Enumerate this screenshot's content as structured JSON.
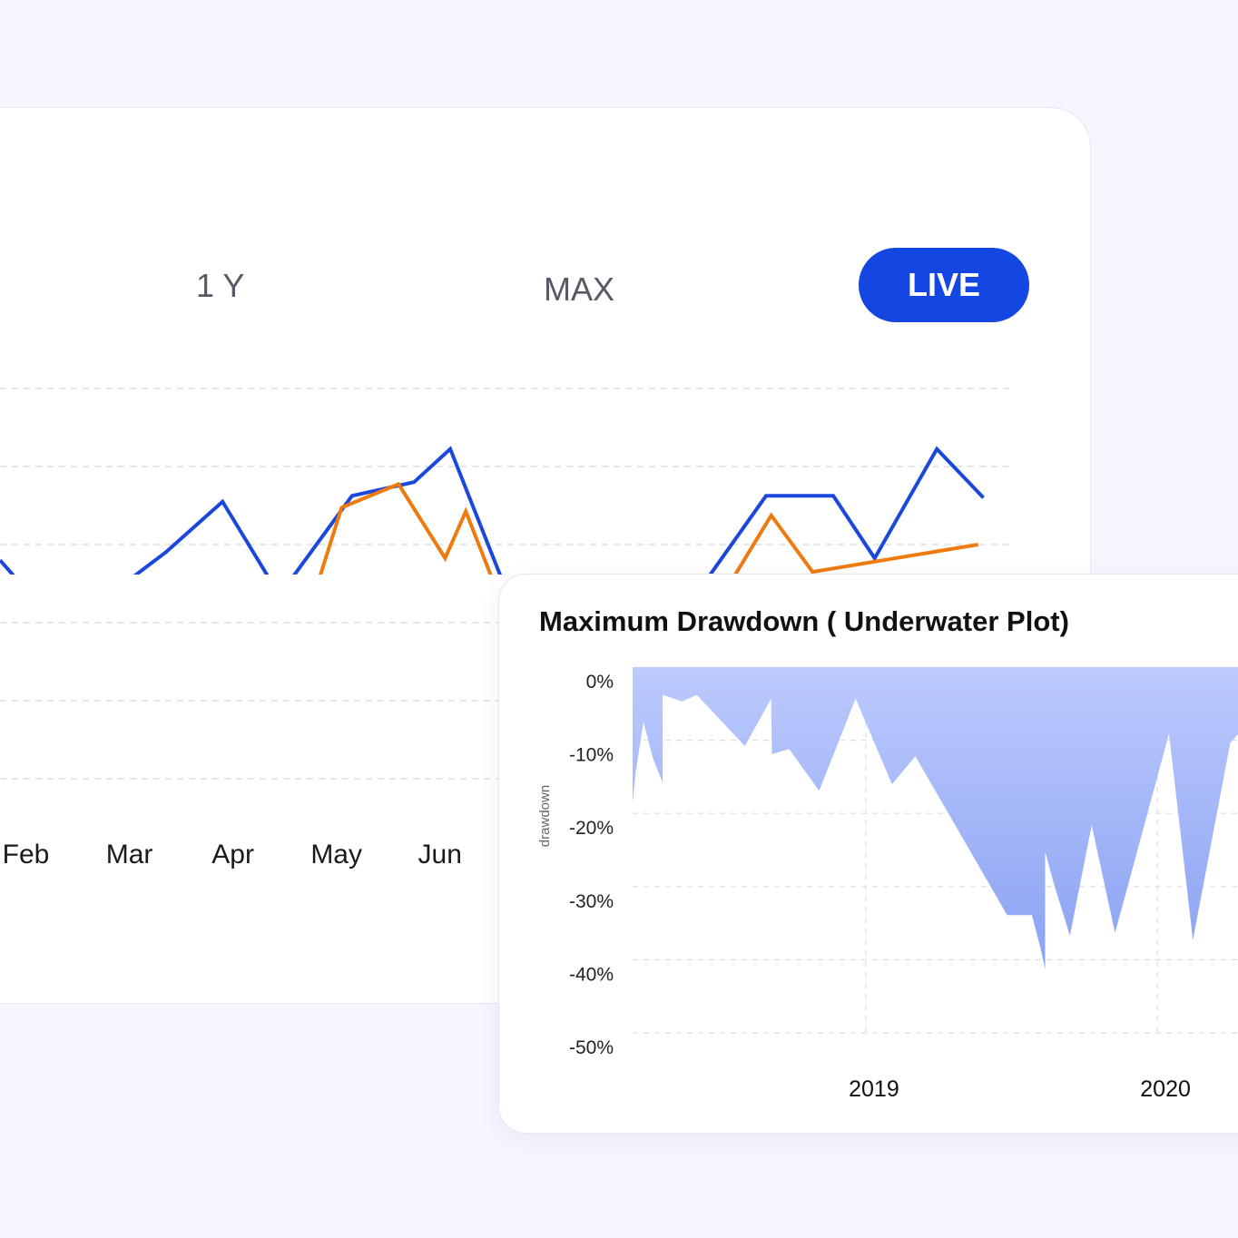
{
  "range_selector": {
    "one_year_label": "1 Y",
    "max_label": "MAX",
    "live_label": "LIVE"
  },
  "colors": {
    "accent": "#1446e1",
    "series_blue": "#1a47dc",
    "series_orange": "#ee7a10",
    "area_top": "#bccafd",
    "area_bottom": "#8aa2f2",
    "grid": "#dedede"
  },
  "chart_data": [
    {
      "type": "line",
      "title": "",
      "categories": [
        "Feb",
        "Mar",
        "Apr",
        "May",
        "Jun"
      ],
      "x_domain": [
        -0.25,
        9.5
      ],
      "grid": true,
      "series": [
        {
          "name": "blue",
          "color": "#1a47dc",
          "points": [
            [
              -0.25,
              56
            ],
            [
              0.35,
              38
            ],
            [
              1.35,
              58
            ],
            [
              1.9,
              71
            ],
            [
              2.45,
              47
            ],
            [
              3.15,
              72.5
            ],
            [
              3.75,
              76
            ],
            [
              4.1,
              84.5
            ],
            [
              4.6,
              51
            ],
            [
              6.55,
              50
            ],
            [
              7.15,
              72.5
            ],
            [
              7.8,
              72.5
            ],
            [
              8.2,
              56.5
            ],
            [
              8.8,
              84.5
            ],
            [
              9.25,
              72
            ]
          ]
        },
        {
          "name": "orange",
          "color": "#ee7a10",
          "points": [
            [
              -0.25,
              41
            ],
            [
              0.2,
              33
            ],
            [
              0.85,
              44.5
            ],
            [
              1.35,
              44
            ],
            [
              2.35,
              10.5
            ],
            [
              3.05,
              69.5
            ],
            [
              3.6,
              75.5
            ],
            [
              4.05,
              56.5
            ],
            [
              4.25,
              68.5
            ],
            [
              4.7,
              38
            ],
            [
              6.8,
              50
            ],
            [
              7.2,
              67.5
            ],
            [
              7.6,
              53
            ],
            [
              9.2,
              60
            ]
          ]
        }
      ]
    },
    {
      "type": "area",
      "title": "Maximum Drawdown ( Underwater Plot)",
      "ylabel": "drawdown",
      "xlabel": "",
      "ylim": [
        -50,
        0
      ],
      "yticks": [
        "0%",
        "-10%",
        "-20%",
        "-30%",
        "-40%",
        "-50%"
      ],
      "xticks": [
        "2019",
        "2020"
      ],
      "x_domain": [
        2018.2,
        2020.42
      ],
      "grid": true,
      "x": [
        2018.2,
        2018.21,
        2018.237,
        2018.27,
        2018.303,
        2018.303,
        2018.37,
        2018.42,
        2018.585,
        2018.675,
        2018.678,
        2018.737,
        2018.84,
        2018.965,
        2019.09,
        2019.17,
        2019.485,
        2019.57,
        2019.6,
        2019.615,
        2019.615,
        2019.645,
        2019.7,
        2019.775,
        2019.855,
        2019.89,
        2020.04,
        2020.122,
        2020.25,
        2020.42
      ],
      "values": [
        -18.5,
        -14.5,
        -7.5,
        -12.5,
        -15.8,
        -3.8,
        -4.7,
        -3.8,
        -10.8,
        -4.3,
        -11.9,
        -11.2,
        -16.9,
        -4.3,
        -16.0,
        -12.2,
        -33.9,
        -33.9,
        -38.5,
        -41.3,
        -25.2,
        -29.6,
        -36.7,
        -21.6,
        -36.3,
        -31.2,
        -9.1,
        -37.3,
        -10.4,
        -2.7
      ]
    }
  ]
}
